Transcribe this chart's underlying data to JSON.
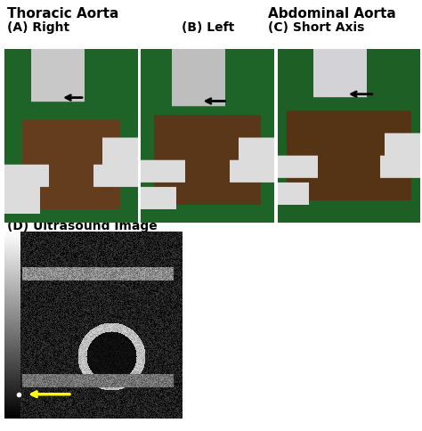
{
  "title_thoracic": "Thoracic Aorta",
  "title_abdominal": "Abdominal Aorta",
  "label_A": "(A) Right",
  "label_B": "(B) Left",
  "label_C": "(C) Short Axis",
  "label_D": "(D) Ultrasound Image",
  "bg_color": "#ffffff",
  "photo_bg_A": "#2d7a3a",
  "photo_bg_B": "#2d7a3a",
  "photo_bg_C": "#2d7a3a",
  "us_bg": "#1a1a1a",
  "title_fontsize": 11,
  "label_fontsize": 10,
  "arrow_color_black": "#000000",
  "arrow_color_yellow": "#ffff00",
  "fig_width": 4.74,
  "fig_height": 4.84
}
